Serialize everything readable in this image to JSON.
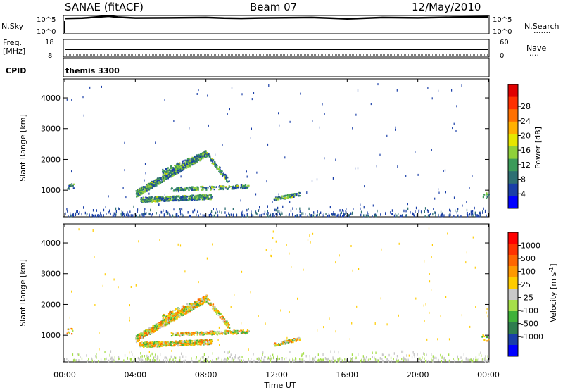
{
  "header": {
    "station": "SANAE (fitACF)",
    "beam": "Beam 07",
    "date": "12/May/2010"
  },
  "side_labels": {
    "nsky": "N.Sky",
    "freq_line1": "Freq.",
    "freq_line2": "[MHz]",
    "cpid": "CPID",
    "nsearch": "N.Search",
    "nave": "Nave",
    "dots_long": "·······",
    "dots_short": "····"
  },
  "cpid_value": "themis 3300",
  "chart_data": [
    {
      "type": "line",
      "name": "N.Sky / N.Search",
      "yticks_left": [
        "10^5",
        "10^0"
      ],
      "yticks_right": [
        "10^5",
        "10^0"
      ],
      "x": [
        0,
        1,
        2,
        2.5,
        3,
        4,
        6,
        8,
        9,
        10,
        11,
        12,
        14,
        15,
        16,
        18,
        20,
        22,
        24
      ],
      "values": [
        0.82,
        0.84,
        0.92,
        0.96,
        0.9,
        0.85,
        0.86,
        0.88,
        0.84,
        0.83,
        0.85,
        0.86,
        0.88,
        0.84,
        0.8,
        0.88,
        0.86,
        0.9,
        0.92
      ]
    },
    {
      "type": "line",
      "name": "Freq / Nave",
      "yticks_left": [
        "18",
        "8"
      ],
      "yticks_right": [
        "60",
        "0"
      ],
      "freq_mhz_level": 12.5
    },
    {
      "type": "heatmap",
      "name": "Power",
      "ylabel": "Slant Range [km]",
      "yticks": [
        1000,
        2000,
        3000,
        4000
      ],
      "ylim": [
        180,
        4550
      ],
      "xlim": [
        0,
        24
      ],
      "colorbar_label": "Power [dB]",
      "colorbar_ticks": [
        "4",
        "8",
        "12",
        "16",
        "20",
        "24",
        "28"
      ],
      "colorbar_colors": [
        "#0000ff",
        "#1a3fa8",
        "#2e6f73",
        "#3c9b5a",
        "#8fd03a",
        "#e6e600",
        "#ffb000",
        "#ff7000",
        "#ff3000",
        "#e00000"
      ]
    },
    {
      "type": "heatmap",
      "name": "Velocity",
      "ylabel": "Slant Range [km]",
      "yticks": [
        1000,
        2000,
        3000,
        4000
      ],
      "ylim": [
        180,
        4550
      ],
      "xlim": [
        0,
        24
      ],
      "xlabel": "Time UT",
      "xticks": [
        "00:00",
        "04:00",
        "08:00",
        "12:00",
        "16:00",
        "20:00",
        "00:00"
      ],
      "colorbar_label": "Velocity [m s",
      "colorbar_label_sup": "-1",
      "colorbar_label_end": "]",
      "colorbar_ticks": [
        "1000",
        "500",
        "100",
        "25",
        "-25",
        "-100",
        "-500",
        "-1000"
      ],
      "colorbar_colors": [
        "#0000ff",
        "#1a3fa8",
        "#2e7d4f",
        "#3fb23a",
        "#a6df4a",
        "#c8c8c8",
        "#ffcc00",
        "#ff9900",
        "#ff6600",
        "#ff3300",
        "#ff0000"
      ]
    }
  ]
}
